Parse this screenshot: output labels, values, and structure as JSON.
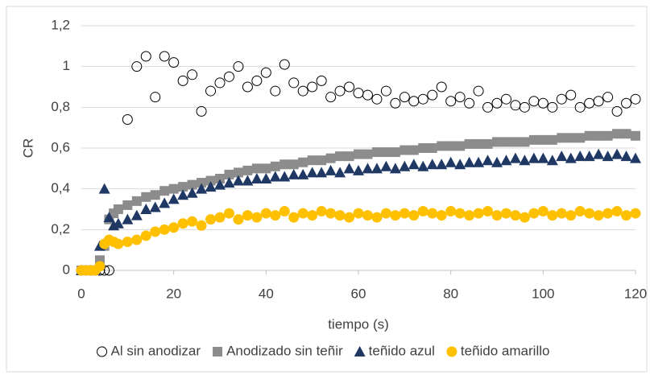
{
  "chart_data": {
    "type": "scatter",
    "y_label": "CR",
    "x_label": "tiempo (s)",
    "x": [
      0,
      1,
      2,
      3,
      4,
      5,
      6,
      7,
      8,
      10,
      12,
      14,
      16,
      18,
      20,
      22,
      24,
      26,
      28,
      30,
      32,
      34,
      36,
      38,
      40,
      42,
      44,
      46,
      48,
      50,
      52,
      54,
      56,
      58,
      60,
      62,
      64,
      66,
      68,
      70,
      72,
      74,
      76,
      78,
      80,
      82,
      84,
      86,
      88,
      90,
      92,
      94,
      96,
      98,
      100,
      102,
      104,
      106,
      108,
      110,
      112,
      114,
      116,
      118,
      120
    ],
    "series": [
      {
        "name": "Al sin anodizar",
        "color": "#000000",
        "marker": "circle-open",
        "values": [
          0,
          0,
          0,
          0,
          0,
          0,
          0,
          null,
          null,
          0.74,
          1.0,
          1.05,
          0.85,
          1.05,
          1.02,
          0.93,
          0.96,
          0.78,
          0.88,
          0.92,
          0.95,
          1.0,
          0.9,
          0.93,
          0.97,
          0.88,
          1.01,
          0.92,
          0.88,
          0.9,
          0.93,
          0.85,
          0.88,
          0.9,
          0.87,
          0.86,
          0.84,
          0.88,
          0.82,
          0.85,
          0.83,
          0.84,
          0.86,
          0.9,
          0.83,
          0.85,
          0.82,
          0.88,
          0.8,
          0.82,
          0.84,
          0.81,
          0.8,
          0.83,
          0.82,
          0.8,
          0.84,
          0.86,
          0.8,
          0.82,
          0.83,
          0.85,
          0.78,
          0.82,
          0.84
        ]
      },
      {
        "name": "Anodizado sin teñir",
        "color": "#8c8c8c",
        "marker": "square",
        "values": [
          0,
          0,
          0,
          0,
          0.05,
          0.12,
          0.25,
          0.28,
          0.3,
          0.32,
          0.34,
          0.36,
          0.37,
          0.39,
          0.4,
          0.41,
          0.42,
          0.43,
          0.44,
          0.45,
          0.47,
          0.48,
          0.49,
          0.5,
          0.5,
          0.51,
          0.52,
          0.52,
          0.53,
          0.54,
          0.54,
          0.55,
          0.56,
          0.56,
          0.57,
          0.57,
          0.58,
          0.58,
          0.58,
          0.59,
          0.59,
          0.6,
          0.6,
          0.61,
          0.61,
          0.61,
          0.62,
          0.62,
          0.62,
          0.63,
          0.63,
          0.63,
          0.63,
          0.64,
          0.64,
          0.64,
          0.65,
          0.65,
          0.65,
          0.66,
          0.66,
          0.66,
          0.67,
          0.67,
          0.66
        ]
      },
      {
        "name": "teñido azul",
        "color": "#1f3864",
        "marker": "triangle",
        "values": [
          0,
          0,
          0,
          0,
          0.12,
          0.4,
          0.26,
          0.22,
          0.23,
          0.25,
          0.27,
          0.3,
          0.31,
          0.33,
          0.35,
          0.37,
          0.38,
          0.4,
          0.41,
          0.42,
          0.43,
          0.44,
          0.44,
          0.45,
          0.45,
          0.46,
          0.46,
          0.47,
          0.47,
          0.48,
          0.48,
          0.49,
          0.48,
          0.5,
          0.49,
          0.5,
          0.5,
          0.51,
          0.5,
          0.51,
          0.52,
          0.51,
          0.52,
          0.52,
          0.53,
          0.52,
          0.53,
          0.53,
          0.54,
          0.53,
          0.54,
          0.55,
          0.54,
          0.55,
          0.55,
          0.54,
          0.56,
          0.55,
          0.56,
          0.56,
          0.57,
          0.56,
          0.57,
          0.56,
          0.55
        ]
      },
      {
        "name": "teñido amarillo",
        "color": "#ffc000",
        "marker": "circle",
        "values": [
          0,
          0,
          0,
          0,
          0.02,
          0.13,
          0.15,
          0.14,
          0.13,
          0.14,
          0.15,
          0.17,
          0.19,
          0.2,
          0.21,
          0.23,
          0.24,
          0.22,
          0.25,
          0.26,
          0.28,
          0.25,
          0.27,
          0.26,
          0.28,
          0.27,
          0.29,
          0.26,
          0.28,
          0.27,
          0.29,
          0.28,
          0.27,
          0.26,
          0.28,
          0.27,
          0.26,
          0.28,
          0.27,
          0.28,
          0.27,
          0.29,
          0.28,
          0.27,
          0.29,
          0.28,
          0.27,
          0.28,
          0.29,
          0.27,
          0.28,
          0.27,
          0.26,
          0.28,
          0.29,
          0.27,
          0.28,
          0.27,
          0.29,
          0.28,
          0.27,
          0.28,
          0.29,
          0.27,
          0.28
        ]
      }
    ],
    "xlim": [
      0,
      120
    ],
    "xticks": [
      0,
      20,
      40,
      60,
      80,
      100,
      120
    ],
    "ylim": [
      0,
      1.2
    ],
    "yticks": [
      0,
      {
        "value": 0.2,
        "label": "0,2"
      },
      {
        "value": 0.4,
        "label": "0,4"
      },
      {
        "value": 0.6,
        "label": "0,6"
      },
      {
        "value": 0.8,
        "label": "0,8"
      },
      1,
      {
        "value": 1.2,
        "label": "1,2"
      }
    ],
    "grid": true,
    "legend": "bottom"
  }
}
